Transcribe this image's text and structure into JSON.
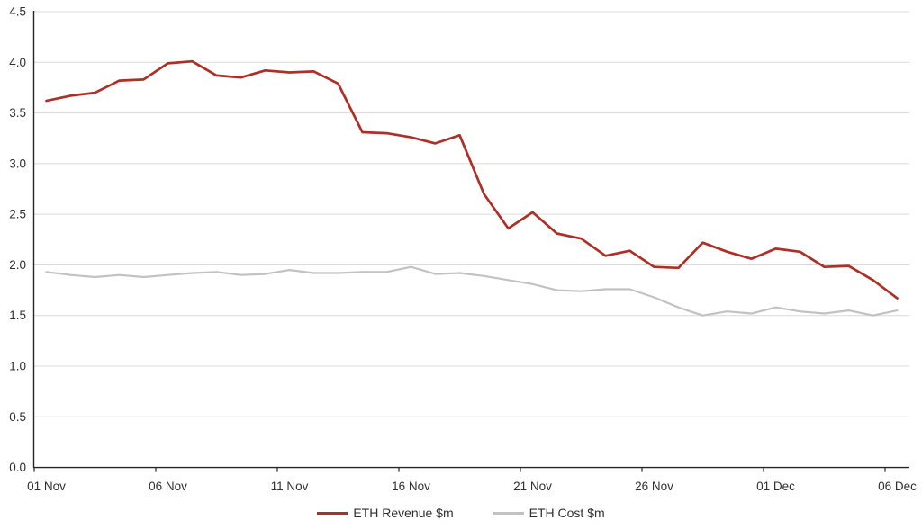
{
  "chart_data": {
    "type": "line",
    "title": "",
    "categories": [
      "01 Nov",
      "02 Nov",
      "03 Nov",
      "04 Nov",
      "05 Nov",
      "06 Nov",
      "07 Nov",
      "08 Nov",
      "09 Nov",
      "10 Nov",
      "11 Nov",
      "12 Nov",
      "13 Nov",
      "14 Nov",
      "15 Nov",
      "16 Nov",
      "17 Nov",
      "18 Nov",
      "19 Nov",
      "20 Nov",
      "21 Nov",
      "22 Nov",
      "23 Nov",
      "24 Nov",
      "25 Nov",
      "26 Nov",
      "27 Nov",
      "28 Nov",
      "29 Nov",
      "30 Nov",
      "01 Dec",
      "02 Dec",
      "03 Dec",
      "04 Dec",
      "05 Dec",
      "06 Dec"
    ],
    "x_tick_labels": [
      "01 Nov",
      "06 Nov",
      "11 Nov",
      "16 Nov",
      "21 Nov",
      "26 Nov",
      "01 Dec",
      "06 Dec"
    ],
    "x_tick_interval": 5,
    "series": [
      {
        "name": "ETH Revenue $m",
        "color": "#ae2f26",
        "values": [
          3.62,
          3.67,
          3.7,
          3.82,
          3.83,
          3.99,
          4.01,
          3.87,
          3.85,
          3.92,
          3.9,
          3.91,
          3.79,
          3.31,
          3.3,
          3.26,
          3.2,
          3.28,
          2.7,
          2.36,
          2.52,
          2.31,
          2.26,
          2.09,
          2.14,
          1.98,
          1.97,
          2.22,
          2.13,
          2.06,
          2.16,
          2.13,
          1.98,
          1.99,
          1.85,
          1.67
        ]
      },
      {
        "name": "ETH Cost $m",
        "color": "#c2c2c2",
        "values": [
          1.93,
          1.9,
          1.88,
          1.9,
          1.88,
          1.9,
          1.92,
          1.93,
          1.9,
          1.91,
          1.95,
          1.92,
          1.92,
          1.93,
          1.93,
          1.98,
          1.91,
          1.92,
          1.89,
          1.85,
          1.81,
          1.75,
          1.74,
          1.76,
          1.76,
          1.68,
          1.58,
          1.5,
          1.54,
          1.52,
          1.58,
          1.54,
          1.52,
          1.55,
          1.5,
          1.55
        ]
      }
    ],
    "ylim": [
      0,
      4.5
    ],
    "ytick_step": 0.5,
    "grid": true,
    "legend_position": "bottom",
    "colors": {
      "gridline": "#d9d9d9",
      "axis": "#262626",
      "tick_text": "#303030"
    }
  }
}
